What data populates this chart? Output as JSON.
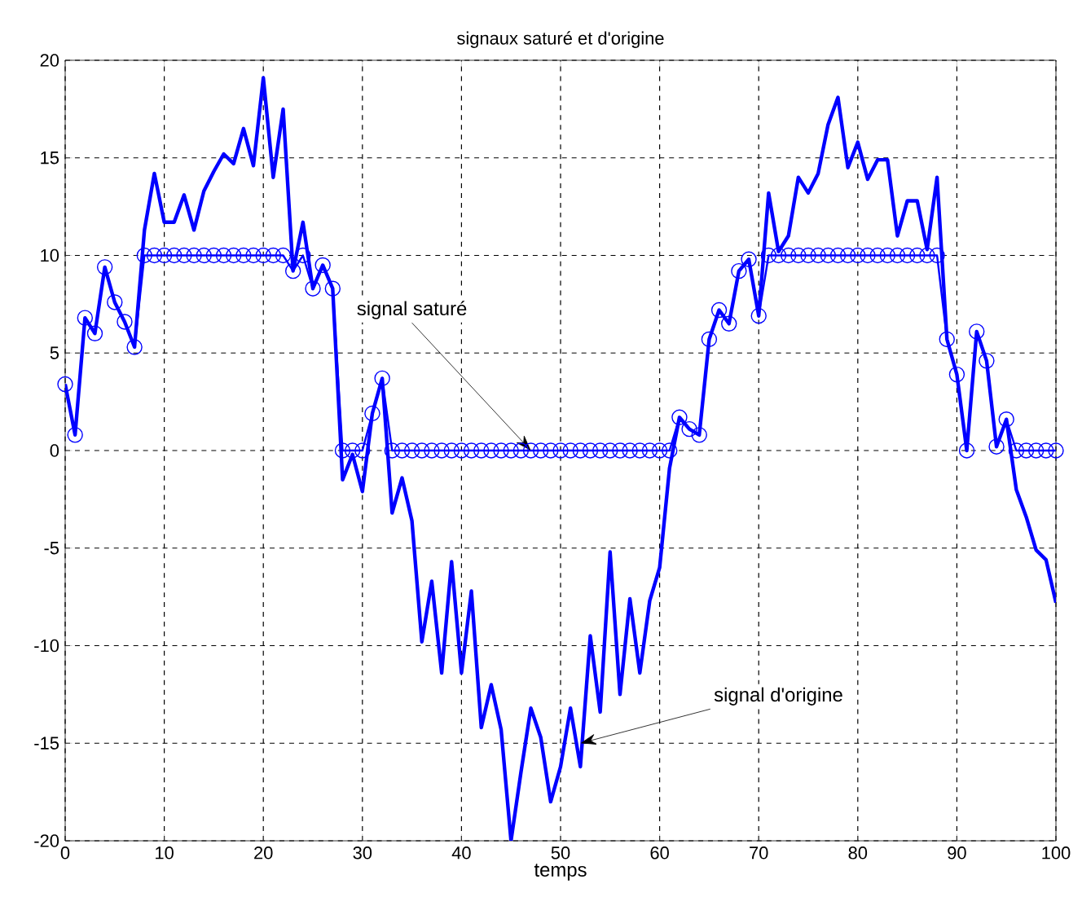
{
  "chart_data": {
    "type": "line",
    "title": "signaux saturé et d'origine",
    "xlabel": "temps",
    "xlim": [
      0,
      100
    ],
    "ylim": [
      -20,
      20
    ],
    "xticks": [
      0,
      10,
      20,
      30,
      40,
      50,
      60,
      70,
      80,
      90,
      100
    ],
    "yticks": [
      -20,
      -15,
      -10,
      -5,
      0,
      5,
      10,
      15,
      20
    ],
    "grid": true,
    "line_style": "solid",
    "x": [
      0,
      1,
      2,
      3,
      4,
      5,
      6,
      7,
      8,
      9,
      10,
      11,
      12,
      13,
      14,
      15,
      16,
      17,
      18,
      19,
      20,
      21,
      22,
      23,
      24,
      25,
      26,
      27,
      28,
      29,
      30,
      31,
      32,
      33,
      34,
      35,
      36,
      37,
      38,
      39,
      40,
      41,
      42,
      43,
      44,
      45,
      46,
      47,
      48,
      49,
      50,
      51,
      52,
      53,
      54,
      55,
      56,
      57,
      58,
      59,
      60,
      61,
      62,
      63,
      64,
      65,
      66,
      67,
      68,
      69,
      70,
      71,
      72,
      73,
      74,
      75,
      76,
      77,
      78,
      79,
      80,
      81,
      82,
      83,
      84,
      85,
      86,
      87,
      88,
      89,
      90,
      91,
      92,
      93,
      94,
      95,
      96,
      97,
      98,
      99,
      100
    ],
    "series": [
      {
        "color": "#0000ff",
        "marker": "none",
        "values": [
          3.4,
          0.8,
          6.8,
          6.0,
          9.4,
          7.6,
          6.6,
          5.3,
          11.3,
          14.2,
          11.7,
          11.7,
          13.1,
          11.3,
          13.3,
          14.3,
          15.2,
          14.7,
          16.5,
          14.6,
          19.1,
          14.0,
          17.5,
          9.2,
          11.7,
          8.3,
          9.5,
          8.3,
          -1.5,
          -0.2,
          -2.1,
          1.9,
          3.7,
          -3.2,
          -1.4,
          -3.6,
          -9.8,
          -6.7,
          -11.4,
          -5.7,
          -11.4,
          -7.2,
          -14.2,
          -12.0,
          -14.3,
          -20,
          -16.5,
          -13.2,
          -14.7,
          -18.0,
          -16.2,
          -13.2,
          -16.2,
          -9.5,
          -13.4,
          -5.2,
          -12.5,
          -7.6,
          -11.4,
          -7.7,
          -6.0,
          -0.9,
          1.7,
          1.1,
          0.8,
          5.7,
          7.2,
          6.5,
          9.2,
          9.8,
          6.9,
          13.2,
          10.2,
          11.0,
          14.0,
          13.2,
          14.2,
          16.7,
          18.1,
          14.5,
          15.8,
          13.9,
          14.9,
          14.9,
          11.0,
          12.8,
          12.8,
          10.3,
          14.0,
          5.7,
          3.9,
          0.0,
          6.1,
          4.6,
          0.2,
          1.6,
          -2.0,
          -3.4,
          -5.1,
          -5.6,
          -7.8
        ]
      },
      {
        "color": "#0000ff",
        "marker": "circle",
        "values": [
          3.4,
          0.8,
          6.8,
          6.0,
          9.4,
          7.6,
          6.6,
          5.3,
          10,
          10,
          10,
          10,
          10,
          10,
          10,
          10,
          10,
          10,
          10,
          10,
          10,
          10,
          10,
          9.2,
          10,
          8.3,
          9.5,
          8.3,
          0,
          0,
          0,
          1.9,
          3.7,
          0,
          0,
          0,
          0,
          0,
          0,
          0,
          0,
          0,
          0,
          0,
          0,
          0,
          0,
          0,
          0,
          0,
          0,
          0,
          0,
          0,
          0,
          0,
          0,
          0,
          0,
          0,
          0,
          0,
          1.7,
          1.1,
          0.8,
          5.7,
          7.2,
          6.5,
          9.2,
          9.8,
          6.9,
          10,
          10,
          10,
          10,
          10,
          10,
          10,
          10,
          10,
          10,
          10,
          10,
          10,
          10,
          10,
          10,
          10,
          10,
          5.7,
          3.9,
          0.0,
          6.1,
          4.6,
          0.2,
          1.6,
          0,
          0,
          0,
          0,
          0
        ]
      }
    ],
    "annotations": [
      {
        "text": "signal saturé",
        "x": 47,
        "y": 0
      },
      {
        "text": "signal d'origine",
        "x": 52,
        "y": -15
      }
    ]
  }
}
